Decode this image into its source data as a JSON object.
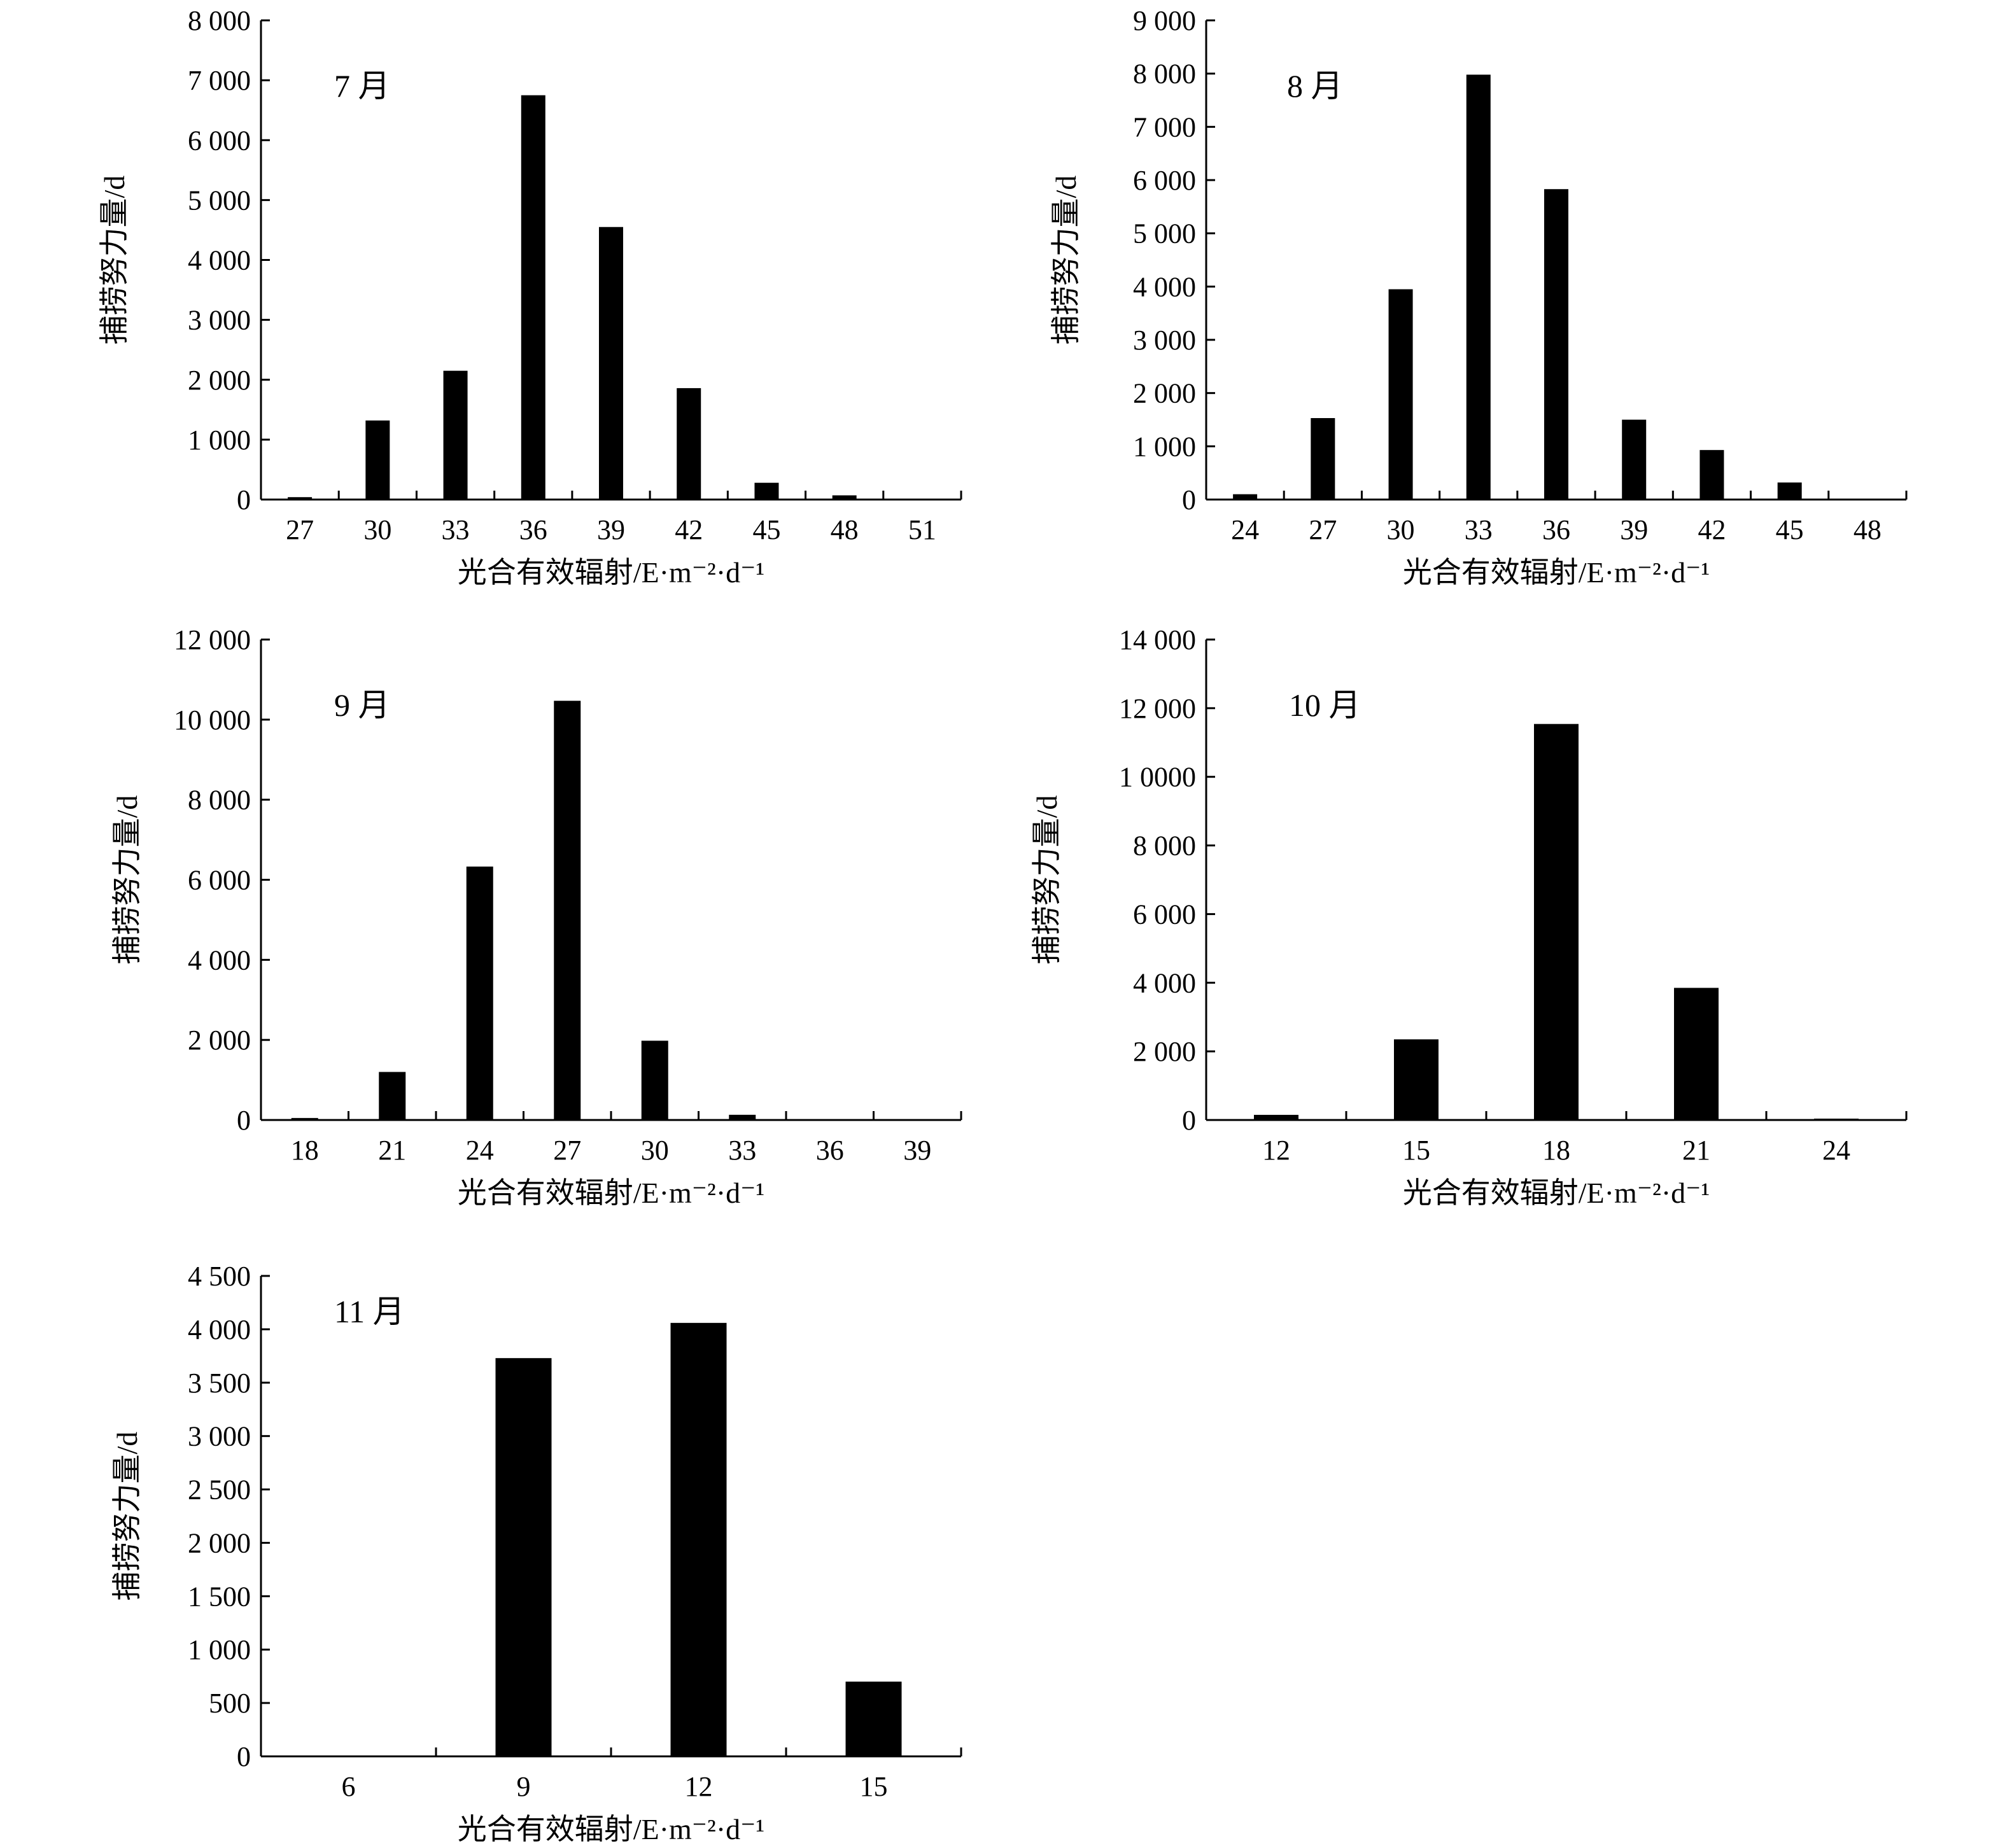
{
  "chart_data": [
    {
      "type": "bar",
      "panel_label": "7 月",
      "categories": [
        "27",
        "30",
        "33",
        "36",
        "39",
        "42",
        "45",
        "48",
        "51"
      ],
      "values": [
        40,
        1320,
        2150,
        6750,
        4550,
        1860,
        280,
        70,
        0
      ],
      "ylim": [
        0,
        8000
      ],
      "yticks": [
        0,
        1000,
        2000,
        3000,
        4000,
        5000,
        6000,
        7000,
        8000
      ],
      "ytick_labels": [
        "0",
        "1 000",
        "2 000",
        "3 000",
        "4 000",
        "5 000",
        "6 000",
        "7 000",
        "8 000"
      ],
      "xlabel": "光合有效辐射/E·m⁻²·d⁻¹",
      "ylabel": "捕捞努力量/d",
      "legend": "none",
      "grid": false
    },
    {
      "type": "bar",
      "panel_label": "8 月",
      "categories": [
        "24",
        "27",
        "30",
        "33",
        "36",
        "39",
        "42",
        "45",
        "48"
      ],
      "values": [
        100,
        1530,
        3950,
        7980,
        5830,
        1500,
        930,
        320,
        0
      ],
      "ylim": [
        0,
        9000
      ],
      "yticks": [
        0,
        1000,
        2000,
        3000,
        4000,
        5000,
        6000,
        7000,
        8000,
        9000
      ],
      "ytick_labels": [
        "0",
        "1 000",
        "2 000",
        "3 000",
        "4 000",
        "5 000",
        "6 000",
        "7 000",
        "8 000",
        "9 000"
      ],
      "xlabel": "光合有效辐射/E·m⁻²·d⁻¹",
      "ylabel": "捕捞努力量/d",
      "legend": "none",
      "grid": false
    },
    {
      "type": "bar",
      "panel_label": "9 月",
      "categories": [
        "18",
        "21",
        "24",
        "27",
        "30",
        "33",
        "36",
        "39"
      ],
      "values": [
        50,
        1200,
        6330,
        10470,
        1980,
        130,
        0,
        0
      ],
      "ylim": [
        0,
        12000
      ],
      "yticks": [
        0,
        2000,
        4000,
        6000,
        8000,
        10000,
        12000
      ],
      "ytick_labels": [
        "0",
        "2 000",
        "4 000",
        "6 000",
        "8 000",
        "10 000",
        "12 000"
      ],
      "xlabel": "光合有效辐射/E·m⁻²·d⁻¹",
      "ylabel": "捕捞努力量/d",
      "legend": "none",
      "grid": false
    },
    {
      "type": "bar",
      "panel_label": "10 月",
      "categories": [
        "12",
        "15",
        "18",
        "21",
        "24"
      ],
      "values": [
        150,
        2350,
        11540,
        3850,
        40
      ],
      "ylim": [
        0,
        14000
      ],
      "yticks": [
        0,
        2000,
        4000,
        6000,
        8000,
        10000,
        12000,
        14000
      ],
      "ytick_labels": [
        "0",
        "2 000",
        "4 000",
        "6 000",
        "8 000",
        "1 0000",
        "12 000",
        "14 000"
      ],
      "xlabel": "光合有效辐射/E·m⁻²·d⁻¹",
      "ylabel": "捕捞努力量/d",
      "legend": "none",
      "grid": false
    },
    {
      "type": "bar",
      "panel_label": "11 月",
      "categories": [
        "6",
        "9",
        "12",
        "15"
      ],
      "values": [
        0,
        3730,
        4060,
        700
      ],
      "ylim": [
        0,
        4500
      ],
      "yticks": [
        0,
        500,
        1000,
        1500,
        2000,
        2500,
        3000,
        3500,
        4000,
        4500
      ],
      "ytick_labels": [
        "0",
        "500",
        "1 000",
        "1 500",
        "2 000",
        "2 500",
        "3 000",
        "3 500",
        "4 000",
        "4 500"
      ],
      "xlabel": "光合有效辐射/E·m⁻²·d⁻¹",
      "ylabel": "捕捞努力量/d",
      "legend": "none",
      "grid": false
    }
  ]
}
